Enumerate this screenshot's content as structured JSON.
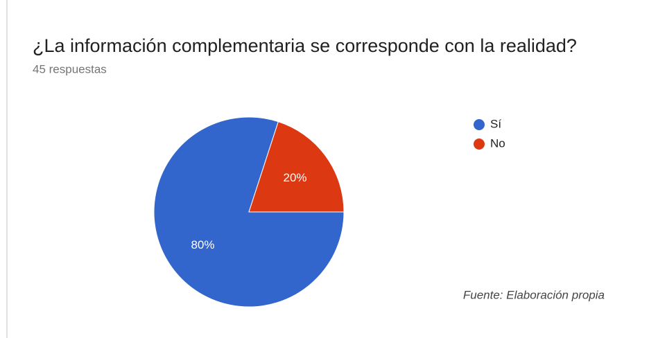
{
  "chart_data": {
    "type": "pie",
    "title": "¿La información complementaria se corresponde con la realidad?",
    "subtitle": "45 respuestas",
    "source": "Fuente: Elaboración propia",
    "categories": [
      "Sí",
      "No"
    ],
    "values": [
      80,
      20
    ],
    "value_labels": [
      "80%",
      "20%"
    ],
    "colors": [
      "#3366cc",
      "#dc3912"
    ],
    "legend": "right"
  }
}
